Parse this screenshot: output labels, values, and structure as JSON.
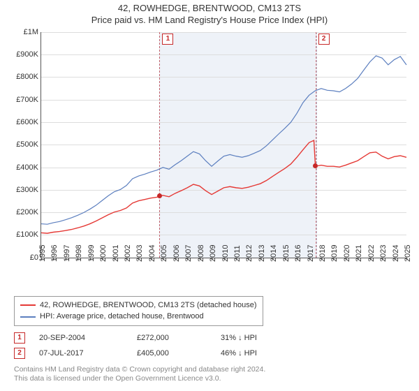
{
  "title_line1": "42, ROWHEDGE, BRENTWOOD, CM13 2TS",
  "title_line2": "Price paid vs. HM Land Registry's House Price Index (HPI)",
  "chart": {
    "type": "line",
    "background_color": "#ffffff",
    "grid_color": "#dddddd",
    "axis_color": "#555555",
    "ylim": [
      0,
      1000000
    ],
    "ytick_step": 100000,
    "ytick_labels": [
      "£0",
      "£100K",
      "£200K",
      "£300K",
      "£400K",
      "£500K",
      "£600K",
      "£700K",
      "£800K",
      "£900K",
      "£1M"
    ],
    "x_start_year": 1995,
    "x_end_year": 2025,
    "x_tick_labels": [
      "1995",
      "1996",
      "1997",
      "1998",
      "1999",
      "2000",
      "2001",
      "2002",
      "2003",
      "2004",
      "2005",
      "2006",
      "2007",
      "2008",
      "2009",
      "2010",
      "2011",
      "2012",
      "2013",
      "2014",
      "2015",
      "2016",
      "2017",
      "2018",
      "2019",
      "2020",
      "2021",
      "2022",
      "2023",
      "2024",
      "2025"
    ],
    "shaded_range": {
      "from_year": 2004.72,
      "to_year": 2017.52,
      "fill": "#eef2f8",
      "dash_color": "rgba(90,110,150,0.45)"
    },
    "sale_marks": [
      {
        "label": "1",
        "year": 2004.72,
        "flag_color": "#c62828"
      },
      {
        "label": "2",
        "year": 2017.52,
        "flag_color": "#c62828"
      }
    ],
    "lines": {
      "subject": {
        "color": "#e53935",
        "width": 1.4,
        "points": [
          [
            1995.0,
            110000
          ],
          [
            1995.5,
            108000
          ],
          [
            1996.0,
            113000
          ],
          [
            1996.5,
            116000
          ],
          [
            1997.0,
            120000
          ],
          [
            1997.5,
            125000
          ],
          [
            1998.0,
            132000
          ],
          [
            1998.5,
            140000
          ],
          [
            1999.0,
            150000
          ],
          [
            1999.5,
            162000
          ],
          [
            2000.0,
            176000
          ],
          [
            2000.5,
            190000
          ],
          [
            2001.0,
            202000
          ],
          [
            2001.5,
            209000
          ],
          [
            2002.0,
            220000
          ],
          [
            2002.5,
            242000
          ],
          [
            2003.0,
            252000
          ],
          [
            2003.5,
            258000
          ],
          [
            2004.0,
            264000
          ],
          [
            2004.5,
            268000
          ],
          [
            2004.72,
            272000
          ],
          [
            2005.0,
            276000
          ],
          [
            2005.5,
            270000
          ],
          [
            2006.0,
            285000
          ],
          [
            2006.5,
            297000
          ],
          [
            2007.0,
            310000
          ],
          [
            2007.5,
            325000
          ],
          [
            2008.0,
            318000
          ],
          [
            2008.5,
            297000
          ],
          [
            2009.0,
            280000
          ],
          [
            2009.5,
            295000
          ],
          [
            2010.0,
            310000
          ],
          [
            2010.5,
            315000
          ],
          [
            2011.0,
            310000
          ],
          [
            2011.5,
            307000
          ],
          [
            2012.0,
            312000
          ],
          [
            2012.5,
            320000
          ],
          [
            2013.0,
            328000
          ],
          [
            2013.5,
            342000
          ],
          [
            2014.0,
            360000
          ],
          [
            2014.5,
            378000
          ],
          [
            2015.0,
            395000
          ],
          [
            2015.5,
            415000
          ],
          [
            2016.0,
            445000
          ],
          [
            2016.5,
            478000
          ],
          [
            2017.0,
            510000
          ],
          [
            2017.4,
            520000
          ],
          [
            2017.52,
            405000
          ],
          [
            2018.0,
            410000
          ],
          [
            2018.5,
            405000
          ],
          [
            2019.0,
            405000
          ],
          [
            2019.5,
            402000
          ],
          [
            2020.0,
            410000
          ],
          [
            2020.5,
            420000
          ],
          [
            2021.0,
            430000
          ],
          [
            2021.5,
            448000
          ],
          [
            2022.0,
            465000
          ],
          [
            2022.5,
            468000
          ],
          [
            2023.0,
            450000
          ],
          [
            2023.5,
            438000
          ],
          [
            2024.0,
            448000
          ],
          [
            2024.5,
            452000
          ],
          [
            2025.0,
            445000
          ]
        ],
        "sale_points": [
          [
            2004.72,
            272000
          ],
          [
            2017.52,
            405000
          ]
        ]
      },
      "hpi": {
        "color": "#5c7fbf",
        "width": 1.2,
        "points": [
          [
            1995.0,
            150000
          ],
          [
            1995.5,
            148000
          ],
          [
            1996.0,
            155000
          ],
          [
            1996.5,
            160000
          ],
          [
            1997.0,
            168000
          ],
          [
            1997.5,
            177000
          ],
          [
            1998.0,
            188000
          ],
          [
            1998.5,
            200000
          ],
          [
            1999.0,
            215000
          ],
          [
            1999.5,
            232000
          ],
          [
            2000.0,
            253000
          ],
          [
            2000.5,
            274000
          ],
          [
            2001.0,
            292000
          ],
          [
            2001.5,
            302000
          ],
          [
            2002.0,
            320000
          ],
          [
            2002.5,
            350000
          ],
          [
            2003.0,
            362000
          ],
          [
            2003.5,
            370000
          ],
          [
            2004.0,
            380000
          ],
          [
            2004.5,
            388000
          ],
          [
            2005.0,
            400000
          ],
          [
            2005.5,
            392000
          ],
          [
            2006.0,
            412000
          ],
          [
            2006.5,
            430000
          ],
          [
            2007.0,
            450000
          ],
          [
            2007.5,
            470000
          ],
          [
            2008.0,
            460000
          ],
          [
            2008.5,
            430000
          ],
          [
            2009.0,
            405000
          ],
          [
            2009.5,
            428000
          ],
          [
            2010.0,
            450000
          ],
          [
            2010.5,
            457000
          ],
          [
            2011.0,
            450000
          ],
          [
            2011.5,
            445000
          ],
          [
            2012.0,
            452000
          ],
          [
            2012.5,
            463000
          ],
          [
            2013.0,
            475000
          ],
          [
            2013.5,
            496000
          ],
          [
            2014.0,
            522000
          ],
          [
            2014.5,
            548000
          ],
          [
            2015.0,
            573000
          ],
          [
            2015.5,
            600000
          ],
          [
            2016.0,
            640000
          ],
          [
            2016.5,
            687000
          ],
          [
            2017.0,
            720000
          ],
          [
            2017.5,
            740000
          ],
          [
            2018.0,
            750000
          ],
          [
            2018.5,
            742000
          ],
          [
            2019.0,
            740000
          ],
          [
            2019.5,
            735000
          ],
          [
            2020.0,
            750000
          ],
          [
            2020.5,
            770000
          ],
          [
            2021.0,
            795000
          ],
          [
            2021.5,
            832000
          ],
          [
            2022.0,
            868000
          ],
          [
            2022.5,
            895000
          ],
          [
            2023.0,
            885000
          ],
          [
            2023.5,
            855000
          ],
          [
            2024.0,
            878000
          ],
          [
            2024.5,
            892000
          ],
          [
            2025.0,
            855000
          ]
        ]
      }
    }
  },
  "legend": {
    "items": [
      {
        "color": "#e53935",
        "label": "42, ROWHEDGE, BRENTWOOD, CM13 2TS (detached house)"
      },
      {
        "color": "#5c7fbf",
        "label": "HPI: Average price, detached house, Brentwood"
      }
    ]
  },
  "sales_table": {
    "rows": [
      {
        "flag": "1",
        "date": "20-SEP-2004",
        "price": "£272,000",
        "delta": "31% ↓ HPI"
      },
      {
        "flag": "2",
        "date": "07-JUL-2017",
        "price": "£405,000",
        "delta": "46% ↓ HPI"
      }
    ]
  },
  "footer_line1": "Contains HM Land Registry data © Crown copyright and database right 2024.",
  "footer_line2": "This data is licensed under the Open Government Licence v3.0."
}
